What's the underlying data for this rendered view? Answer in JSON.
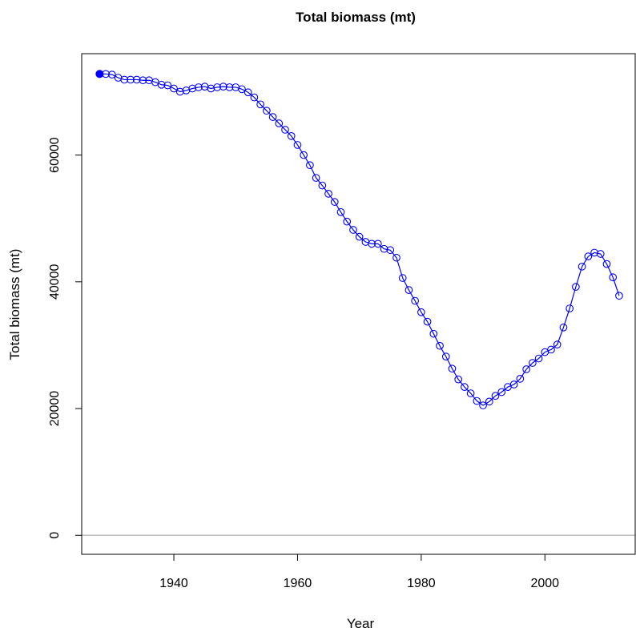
{
  "chart_data": {
    "type": "line",
    "title": "Total biomass (mt)",
    "xlabel": "Year",
    "ylabel": "Total biomass (mt)",
    "xlim": [
      1925.1,
      2014.6
    ],
    "ylim": [
      -3000,
      76000
    ],
    "x_ticks": [
      "1940",
      "1960",
      "1980",
      "2000"
    ],
    "y_ticks": [
      "0",
      "20000",
      "40000",
      "60000"
    ],
    "reference_line": 0,
    "grid": false,
    "legend": "none",
    "colors": {
      "series": "#0000ff",
      "first_point": "#0000ff",
      "reference_line": "#bfbfbf",
      "frame": "#000000"
    },
    "series": [
      {
        "x": [
          1928,
          1929,
          1930,
          1931,
          1932,
          1933,
          1934,
          1935,
          1936,
          1937,
          1938,
          1939,
          1940,
          1941,
          1942,
          1943,
          1944,
          1945,
          1946,
          1947,
          1948,
          1949,
          1950,
          1951,
          1952,
          1953,
          1954,
          1955,
          1956,
          1957,
          1958,
          1959,
          1960,
          1961,
          1962,
          1963,
          1964,
          1965,
          1966,
          1967,
          1968,
          1969,
          1970,
          1971,
          1972,
          1973,
          1974,
          1975,
          1976,
          1977,
          1978,
          1979,
          1980,
          1981,
          1982,
          1983,
          1984,
          1985,
          1986,
          1987,
          1988,
          1989,
          1990,
          1991,
          1992,
          1993,
          1994,
          1995,
          1996,
          1997,
          1998,
          1999,
          2000,
          2001,
          2002,
          2003,
          2004,
          2005,
          2006,
          2007,
          2008,
          2009,
          2010,
          2011,
          2012
        ],
        "y": [
          72800,
          72800,
          72700,
          72200,
          71900,
          71900,
          71900,
          71800,
          71800,
          71500,
          71100,
          71000,
          70500,
          70000,
          70200,
          70500,
          70700,
          70800,
          70500,
          70700,
          70800,
          70700,
          70700,
          70400,
          69900,
          69100,
          68000,
          67000,
          66000,
          65000,
          64000,
          63000,
          61600,
          60000,
          58400,
          56400,
          55200,
          53900,
          52600,
          51000,
          49500,
          48200,
          47100,
          46300,
          46000,
          46000,
          45200,
          45000,
          43800,
          40600,
          38700,
          37000,
          35200,
          33700,
          31800,
          29900,
          28200,
          26300,
          24600,
          23400,
          22400,
          21200,
          20500,
          21100,
          22000,
          22600,
          23400,
          23800,
          24700,
          26200,
          27200,
          27900,
          28900,
          29300,
          30100,
          32800,
          35800,
          39200,
          42400,
          44000,
          44600,
          44400,
          42800,
          40700,
          37800
        ]
      }
    ]
  }
}
